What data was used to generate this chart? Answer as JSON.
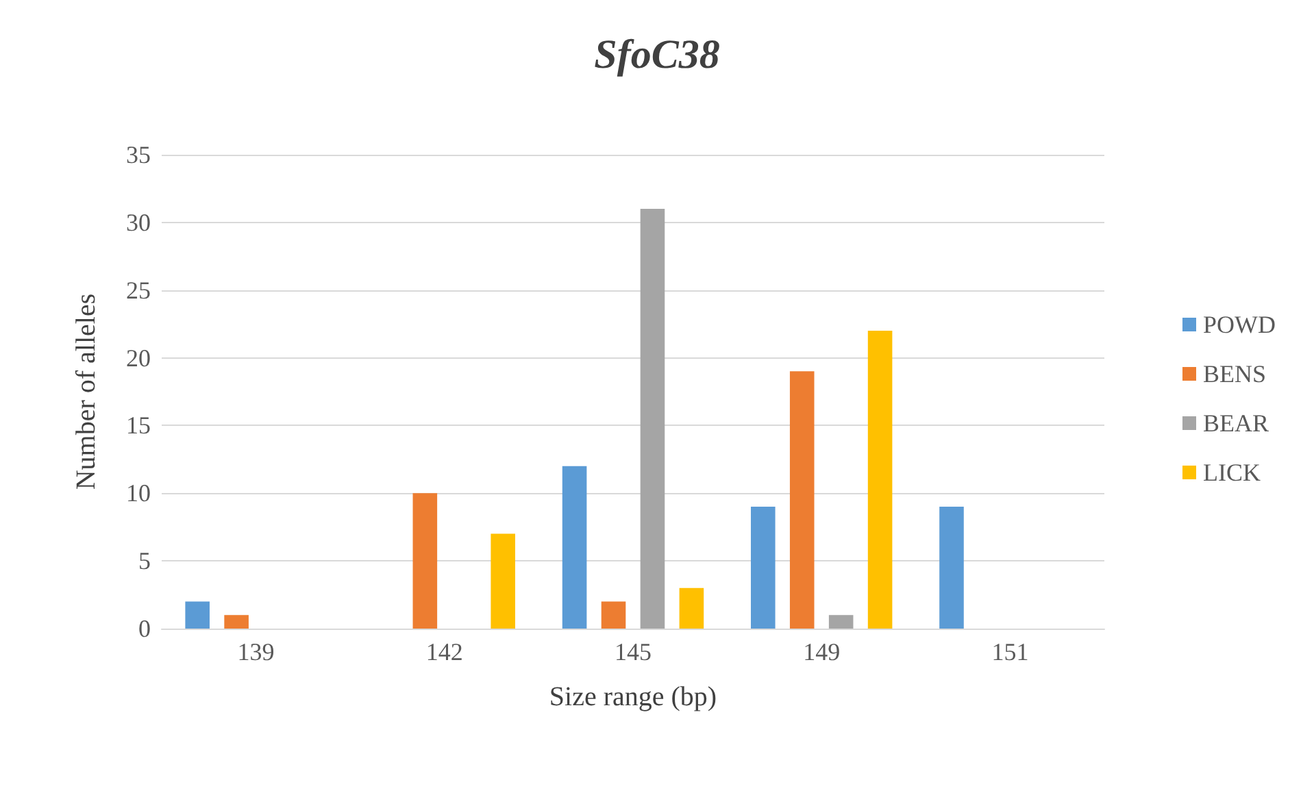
{
  "chart_data": {
    "type": "bar",
    "title": "SfoC38",
    "xlabel": "Size range (bp)",
    "ylabel": "Number of alleles",
    "categories": [
      "139",
      "142",
      "145",
      "149",
      "151"
    ],
    "series": [
      {
        "name": "POWD",
        "color": "#5b9bd5",
        "values": [
          2,
          0,
          12,
          9,
          9
        ]
      },
      {
        "name": "BENS",
        "color": "#ed7d31",
        "values": [
          1,
          10,
          2,
          19,
          0
        ]
      },
      {
        "name": "BEAR",
        "color": "#a5a5a5",
        "values": [
          0,
          0,
          31,
          1,
          0
        ]
      },
      {
        "name": "LICK",
        "color": "#ffc000",
        "values": [
          0,
          7,
          3,
          22,
          0
        ]
      }
    ],
    "ylim": [
      0,
      35
    ],
    "yticks": [
      0,
      5,
      10,
      15,
      20,
      25,
      30,
      35
    ],
    "grid": "y",
    "legend": "right"
  }
}
